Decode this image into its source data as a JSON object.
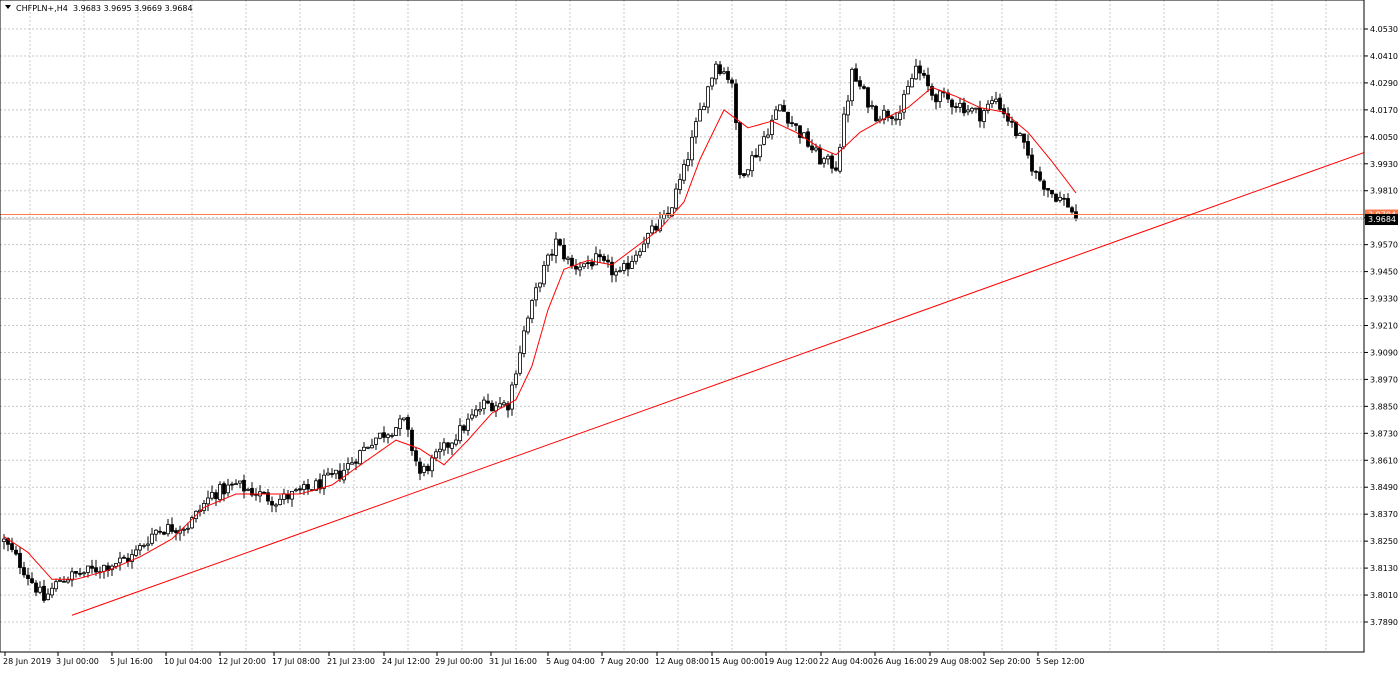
{
  "header": {
    "symbol": "CHFPLN+,H4",
    "ohlc": "3.9683 3.9695 3.9669 3.9684"
  },
  "colors": {
    "background": "#ffffff",
    "grid": "#c8c8c8",
    "candle": "#000000",
    "moving_average": "#ff0000",
    "trendline": "#ff0000",
    "price_line": "#ff7a4a",
    "price_tag": "#000000"
  },
  "chart_data": {
    "type": "candlestick",
    "symbol": "CHFPLN+",
    "timeframe": "H4",
    "ylim": [
      3.786,
      4.058
    ],
    "y_ticks": [
      "4.0530",
      "4.0410",
      "4.0290",
      "4.0170",
      "4.0050",
      "3.9930",
      "3.9810",
      "3.9690",
      "3.9570",
      "3.9450",
      "3.9330",
      "3.9210",
      "3.9090",
      "3.8970",
      "3.8850",
      "3.8730",
      "3.8610",
      "3.8490",
      "3.8370",
      "3.8250",
      "3.8130",
      "3.8010",
      "3.7890"
    ],
    "x_ticks": [
      "28 Jun 2019",
      "3 Jul 00:00",
      "5 Jul 16:00",
      "10 Jul 04:00",
      "12 Jul 20:00",
      "17 Jul 08:00",
      "21 Jul 23:00",
      "24 Jul 12:00",
      "29 Jul 00:00",
      "31 Jul 16:00",
      "5 Aug 04:00",
      "7 Aug 20:00",
      "12 Aug 08:00",
      "15 Aug 00:00",
      "19 Aug 12:00",
      "22 Aug 04:00",
      "26 Aug 16:00",
      "29 Aug 08:00",
      "2 Sep 20:00",
      "5 Sep 12:00"
    ],
    "current_price": 3.9684,
    "current_price_label": "3.9684",
    "overlapped_tag_label": "3.9704",
    "horizontal_line_price": 3.9704,
    "close_anchors": [
      [
        0,
        3.825
      ],
      [
        4,
        3.815
      ],
      [
        10,
        3.799
      ],
      [
        14,
        3.808
      ],
      [
        22,
        3.812
      ],
      [
        32,
        3.818
      ],
      [
        38,
        3.83
      ],
      [
        46,
        3.832
      ],
      [
        52,
        3.846
      ],
      [
        58,
        3.85
      ],
      [
        68,
        3.843
      ],
      [
        76,
        3.848
      ],
      [
        84,
        3.855
      ],
      [
        92,
        3.87
      ],
      [
        100,
        3.878
      ],
      [
        104,
        3.855
      ],
      [
        108,
        3.862
      ],
      [
        114,
        3.874
      ],
      [
        120,
        3.886
      ],
      [
        126,
        3.886
      ],
      [
        130,
        3.918
      ],
      [
        134,
        3.942
      ],
      [
        138,
        3.958
      ],
      [
        142,
        3.947
      ],
      [
        148,
        3.95
      ],
      [
        154,
        3.943
      ],
      [
        160,
        3.959
      ],
      [
        166,
        3.97
      ],
      [
        170,
        3.99
      ],
      [
        174,
        4.016
      ],
      [
        178,
        4.038
      ],
      [
        182,
        4.03
      ],
      [
        184,
        3.988
      ],
      [
        188,
        3.998
      ],
      [
        194,
        4.019
      ],
      [
        198,
        4.009
      ],
      [
        204,
        3.995
      ],
      [
        208,
        3.992
      ],
      [
        212,
        4.033
      ],
      [
        218,
        4.015
      ],
      [
        224,
        4.016
      ],
      [
        228,
        4.036
      ],
      [
        232,
        4.024
      ],
      [
        238,
        4.02
      ],
      [
        244,
        4.015
      ],
      [
        248,
        4.022
      ],
      [
        254,
        4.004
      ],
      [
        258,
        3.988
      ],
      [
        262,
        3.98
      ],
      [
        266,
        3.975
      ],
      [
        268,
        3.9684
      ]
    ],
    "moving_average_anchors": [
      [
        0,
        3.827
      ],
      [
        6,
        3.82
      ],
      [
        12,
        3.808
      ],
      [
        18,
        3.808
      ],
      [
        26,
        3.812
      ],
      [
        34,
        3.818
      ],
      [
        42,
        3.826
      ],
      [
        50,
        3.84
      ],
      [
        58,
        3.846
      ],
      [
        66,
        3.846
      ],
      [
        74,
        3.846
      ],
      [
        82,
        3.85
      ],
      [
        90,
        3.86
      ],
      [
        98,
        3.87
      ],
      [
        104,
        3.866
      ],
      [
        110,
        3.859
      ],
      [
        116,
        3.87
      ],
      [
        122,
        3.882
      ],
      [
        128,
        3.888
      ],
      [
        132,
        3.903
      ],
      [
        136,
        3.928
      ],
      [
        140,
        3.946
      ],
      [
        146,
        3.95
      ],
      [
        152,
        3.948
      ],
      [
        158,
        3.956
      ],
      [
        164,
        3.964
      ],
      [
        170,
        3.976
      ],
      [
        174,
        3.995
      ],
      [
        180,
        4.017
      ],
      [
        186,
        4.009
      ],
      [
        192,
        4.012
      ],
      [
        198,
        4.007
      ],
      [
        204,
        4.0
      ],
      [
        208,
        3.997
      ],
      [
        214,
        4.007
      ],
      [
        220,
        4.013
      ],
      [
        226,
        4.018
      ],
      [
        232,
        4.027
      ],
      [
        238,
        4.023
      ],
      [
        244,
        4.018
      ],
      [
        250,
        4.016
      ],
      [
        256,
        4.007
      ],
      [
        262,
        3.994
      ],
      [
        268,
        3.98
      ]
    ],
    "trendline": [
      [
        17,
        3.792
      ],
      [
        340,
        3.998
      ]
    ],
    "bar_count": 269
  }
}
